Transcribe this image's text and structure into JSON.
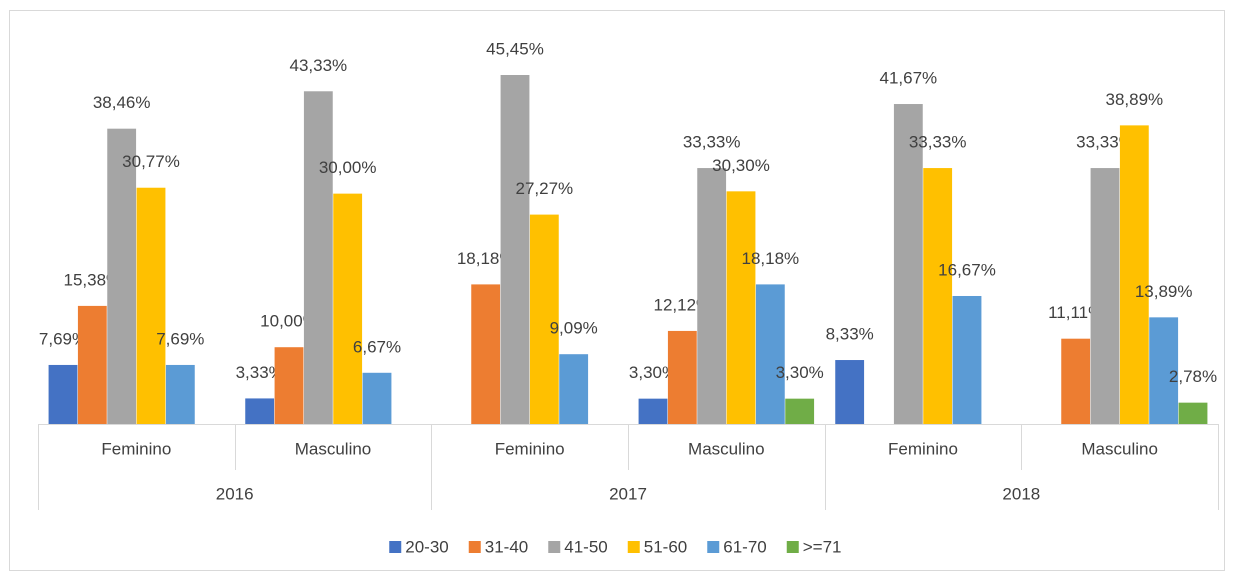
{
  "chart_data": {
    "type": "bar",
    "categories": [
      "Feminino",
      "Masculino",
      "Feminino",
      "Masculino",
      "Feminino",
      "Masculino"
    ],
    "groups": [
      "2016",
      "2017",
      "2018"
    ],
    "series": [
      {
        "name": "20-30",
        "color": "#4472c4",
        "values": [
          7.69,
          3.33,
          null,
          3.3,
          8.33,
          null
        ],
        "value_labels": [
          "7,69%",
          "3,33%",
          null,
          "3,30%",
          "8,33%",
          null
        ]
      },
      {
        "name": "31-40",
        "color": "#ed7d31",
        "values": [
          15.38,
          10.0,
          18.18,
          12.12,
          null,
          11.11
        ],
        "value_labels": [
          "15,38%",
          "10,00%",
          "18,18%",
          "12,12%",
          null,
          "11,11%"
        ]
      },
      {
        "name": "41-50",
        "color": "#a5a5a5",
        "values": [
          38.46,
          43.33,
          45.45,
          33.33,
          41.67,
          33.33
        ],
        "value_labels": [
          "38,46%",
          "43,33%",
          "45,45%",
          "33,33%",
          "41,67%",
          "33,33%"
        ]
      },
      {
        "name": "51-60",
        "color": "#ffc000",
        "values": [
          30.77,
          30.0,
          27.27,
          30.3,
          33.33,
          38.89
        ],
        "value_labels": [
          "30,77%",
          "30,00%",
          "27,27%",
          "30,30%",
          "33,33%",
          "38,89%"
        ]
      },
      {
        "name": "61-70",
        "color": "#5b9bd5",
        "values": [
          7.69,
          6.67,
          9.09,
          18.18,
          16.67,
          13.89
        ],
        "value_labels": [
          "7,69%",
          "6,67%",
          "9,09%",
          "18,18%",
          "16,67%",
          "13,89%"
        ]
      },
      {
        "name": ">=71",
        "color": "#70ad47",
        "values": [
          null,
          null,
          null,
          3.3,
          null,
          2.78
        ],
        "value_labels": [
          null,
          null,
          null,
          "3,30%",
          null,
          "2,78%"
        ]
      }
    ],
    "legend": "bottom"
  }
}
